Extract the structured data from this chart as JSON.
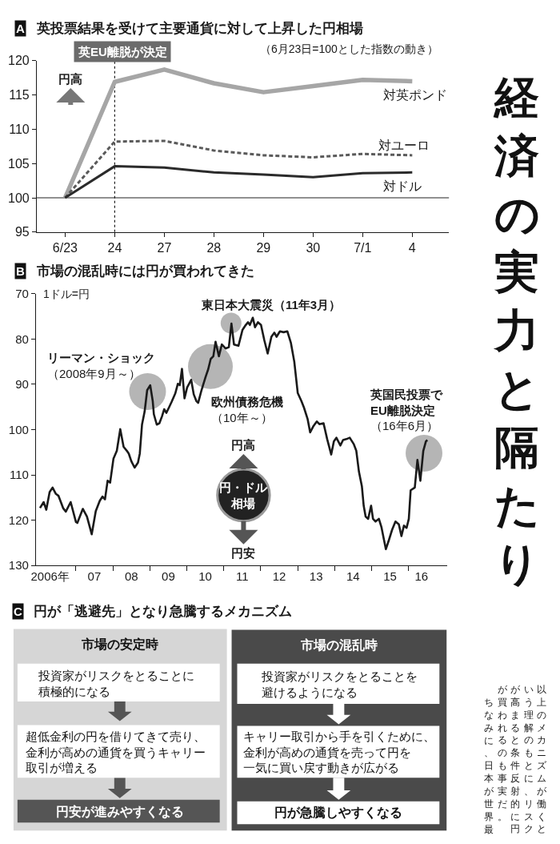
{
  "chart_data": [
    {
      "type": "line",
      "title": "A 英投票結果を受けて主要通貨に対して上昇した円相場",
      "subtitle": "（6月23日=100とした指数の動き）",
      "categories": [
        "6/23",
        "24",
        "27",
        "28",
        "29",
        "30",
        "7/1",
        "4"
      ],
      "series": [
        {
          "name": "対英ポンド",
          "color": "#a6a6a6",
          "values": [
            100,
            116.9,
            118.7,
            116.7,
            115.4,
            116.3,
            117.2,
            117.0
          ]
        },
        {
          "name": "対ユーロ",
          "color": "#5a5a5a",
          "line_style": "dashed",
          "values": [
            100,
            108.2,
            108.3,
            106.9,
            106.2,
            105.9,
            106.4,
            106.2
          ]
        },
        {
          "name": "対ドル",
          "color": "#2b2b2b",
          "values": [
            100,
            104.6,
            104.4,
            103.7,
            103.4,
            103.0,
            103.6,
            103.7
          ]
        }
      ],
      "ylim": [
        95,
        120
      ],
      "yticks": [
        95,
        100,
        105,
        110,
        115,
        120
      ],
      "ref_lines": [
        {
          "axis": "y",
          "value": 100,
          "color": "#222222"
        },
        {
          "axis": "x",
          "value": "24",
          "label": "英EU離脱が決定",
          "line_style": "dotted",
          "color": "#222222"
        }
      ],
      "annotations": [
        "円高"
      ]
    },
    {
      "type": "line",
      "title": "B 市場の混乱時には円が買われてきた",
      "ylabel": "1ドル=円",
      "x": [
        "2006-01-11",
        "2006-02-16",
        "2006-03-14",
        "2006-04-16",
        "2006-05-15",
        "2006-06-17",
        "2006-07-12",
        "2006-08-29",
        "2006-09-23",
        "2006-11-10",
        "2007-01-01",
        "2007-01-15",
        "2007-03-10",
        "2007-04-20",
        "2007-06-06",
        "2007-07-16",
        "2007-08-25",
        "2007-09-20",
        "2007-10-15",
        "2007-11-10",
        "2007-12-05",
        "2008-01-07",
        "2008-02-09",
        "2008-03-14",
        "2008-04-16",
        "2008-05-19",
        "2008-06-06",
        "2008-07-02",
        "2008-08-03",
        "2008-09-05",
        "2008-09-23",
        "2008-10-15",
        "2008-11-10",
        "2008-12-05",
        "2009-01-04",
        "2009-01-29",
        "2009-02-09",
        "2009-03-10",
        "2009-04-05",
        "2009-04-30",
        "2009-05-22",
        "2009-06-13",
        "2009-07-09",
        "2009-08-03",
        "2009-09-09",
        "2009-10-04",
        "2009-10-23",
        "2009-11-14",
        "2009-12-09",
        "2010-01-04",
        "2010-02-13",
        "2010-03-10",
        "2010-04-05",
        "2010-04-23",
        "2010-05-26",
        "2010-07-05",
        "2010-07-31",
        "2010-08-25",
        "2010-09-20",
        "2010-10-12",
        "2010-11-14",
        "2010-12-13",
        "2011-01-18",
        "2011-02-20",
        "2011-03-18",
        "2011-04-12",
        "2011-05-26",
        "2011-07-05",
        "2011-07-31",
        "2011-08-29",
        "2011-09-16",
        "2011-10-15",
        "2011-11-06",
        "2011-12-05",
        "2012-01-04",
        "2012-02-06",
        "2012-03-10",
        "2012-04-16",
        "2012-05-15",
        "2012-06-06",
        "2012-07-09",
        "2012-08-14",
        "2012-09-20",
        "2012-10-26",
        "2012-11-28",
        "2013-01-01",
        "2013-02-06",
        "2013-03-03",
        "2013-04-09",
        "2013-05-04",
        "2013-06-06",
        "2013-07-09",
        "2013-08-03",
        "2013-09-13",
        "2013-10-19",
        "2013-11-28",
        "2013-12-24",
        "2014-01-18",
        "2014-02-27",
        "2014-03-25",
        "2014-04-27",
        "2014-05-30",
        "2014-07-09",
        "2014-08-03",
        "2014-08-29",
        "2014-09-27",
        "2014-10-15",
        "2014-11-03",
        "2014-11-28",
        "2014-12-27",
        "2015-01-15",
        "2015-02-09",
        "2015-03-14",
        "2015-04-08",
        "2015-05-04",
        "2015-05-22",
        "2015-06-21",
        "2015-07-23",
        "2015-08-25",
        "2015-09-27",
        "2015-10-23",
        "2015-11-17",
        "2015-12-13",
        "2016-01-04",
        "2016-01-22",
        "2016-03-03",
        "2016-03-29",
        "2016-04-27",
        "2016-05-26",
        "2016-06-21",
        "2016-07-05"
      ],
      "series": [
        {
          "color": "#1a1a1a",
          "values": [
            117.3,
            116.0,
            117.7,
            113.8,
            112.8,
            114.2,
            114.6,
            117.4,
            118.1,
            116.0,
            120.4,
            120.6,
            117.5,
            119.2,
            123.1,
            118.0,
            115.7,
            114.8,
            115.4,
            111.3,
            111.7,
            106.4,
            104.7,
            99.9,
            103.8,
            104.7,
            105.3,
            107.0,
            108.4,
            107.3,
            105.3,
            98.9,
            96.0,
            91.3,
            90.2,
            93.7,
            96.6,
            98.9,
            98.6,
            97.1,
            95.5,
            96.3,
            95.1,
            93.9,
            92.0,
            89.9,
            90.2,
            86.6,
            93.1,
            90.7,
            89.0,
            92.2,
            93.7,
            94.1,
            91.3,
            88.4,
            86.7,
            84.4,
            83.8,
            80.6,
            83.8,
            81.2,
            82.1,
            81.8,
            76.6,
            81.2,
            81.5,
            78.0,
            77.1,
            76.3,
            76.9,
            75.3,
            77.4,
            76.3,
            76.9,
            80.3,
            83.2,
            79.5,
            78.6,
            79.5,
            78.3,
            78.5,
            78.3,
            80.9,
            85.0,
            91.9,
            93.7,
            95.1,
            97.7,
            100.6,
            99.2,
            98.2,
            98.8,
            98.6,
            102.1,
            105.5,
            102.6,
            101.8,
            103.5,
            102.3,
            102.1,
            101.8,
            103.2,
            104.7,
            109.3,
            112.5,
            116.8,
            119.2,
            119.7,
            116.8,
            119.7,
            120.3,
            119.7,
            121.5,
            124.4,
            126.4,
            124.4,
            122.1,
            120.3,
            120.9,
            123.5,
            121.2,
            121.7,
            119.7,
            113.4,
            112.8,
            106.7,
            111.3,
            104.7,
            102.6,
            102.3
          ]
        }
      ],
      "xlim": [
        "2005-12-02",
        "2017-01-19"
      ],
      "xticks": [
        {
          "value": "2006-04-21",
          "label": "2006年"
        },
        {
          "value": "2007-01-01",
          "label": null
        },
        {
          "value": "2007-07-02",
          "label": "07"
        },
        {
          "value": "2008-01-01",
          "label": null
        },
        {
          "value": "2008-07-02",
          "label": "08"
        },
        {
          "value": "2009-01-01",
          "label": null
        },
        {
          "value": "2009-07-02",
          "label": "09"
        },
        {
          "value": "2010-01-01",
          "label": null
        },
        {
          "value": "2010-07-02",
          "label": "10"
        },
        {
          "value": "2011-01-01",
          "label": null
        },
        {
          "value": "2011-07-02",
          "label": "11"
        },
        {
          "value": "2012-01-01",
          "label": null
        },
        {
          "value": "2012-07-02",
          "label": "12"
        },
        {
          "value": "2013-01-01",
          "label": null
        },
        {
          "value": "2013-07-02",
          "label": "13"
        },
        {
          "value": "2014-01-01",
          "label": null
        },
        {
          "value": "2014-07-02",
          "label": "14"
        },
        {
          "value": "2015-01-01",
          "label": null
        },
        {
          "value": "2015-07-02",
          "label": "15"
        },
        {
          "value": "2016-01-01",
          "label": null
        },
        {
          "value": "2016-05-08",
          "label": "16"
        }
      ],
      "ylim": [
        130,
        70
      ],
      "yticks": [
        70,
        80,
        90,
        100,
        110,
        120,
        130
      ],
      "annotations": [
        {
          "text": "リーマン・ショック（2008年9月～）",
          "x": "2008-12-09",
          "y": 91.6
        },
        {
          "text": "欧州債務危機（10年～）",
          "x": "2010-08-22",
          "y": 86.1
        },
        {
          "text": "東日本大震災（11年3月）",
          "x": "2011-03-14",
          "y": 76.5
        },
        {
          "text": "英国民投票でEU離脱決定（16年6月）",
          "x": "2016-06-02",
          "y": 105.2
        },
        "円高",
        "円・ドル相場",
        "円安"
      ]
    },
    {
      "type": "other",
      "title": "C 円が「逃避先」となり急騰するメカニズム",
      "annotations": [
        "市場の安定時",
        "投資家がリスクをとることに積極的になる",
        "超低金利の円を借りてきて売り、金利が高めの通貨を買うキャリー取引が増える",
        "円安が進みやすくなる",
        "市場の混乱時",
        "投資家がリスクをとることを避けるようになる",
        "キャリー取引から手を引くために、金利が高めの通貨を売って円を一気に買い戻す動きが広がる",
        "円が急騰しやすくなる"
      ]
    },
    {
      "type": "other",
      "title": "経済の実力と隔たり",
      "annotations": [
        "以上のメカニズムが働くと",
        "いう理解のもとに、リスク",
        "が高まると条件反射的に円",
        "が買われるのも事実だ。",
        "ちなみに、日本が世界最"
      ]
    }
  ]
}
